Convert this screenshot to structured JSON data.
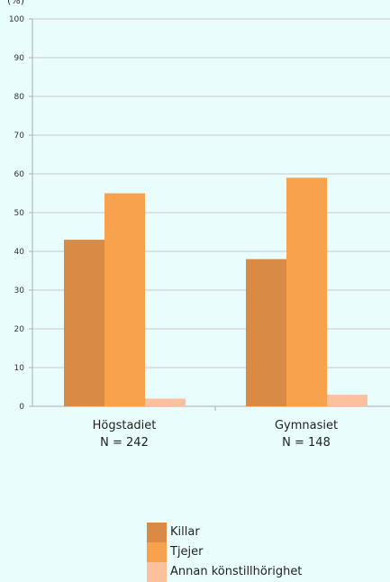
{
  "chart_data": {
    "type": "bar",
    "ylabel": "(%)",
    "ylim": [
      0,
      100
    ],
    "yticks": [
      0,
      10,
      20,
      30,
      40,
      50,
      60,
      70,
      80,
      90,
      100
    ],
    "categories": [
      {
        "label": "Högstadiet",
        "sublabel": "N = 242"
      },
      {
        "label": "Gymnasiet",
        "sublabel": "N = 148"
      }
    ],
    "series": [
      {
        "name": "Killar",
        "color": "#d98a45",
        "values": [
          43,
          38
        ]
      },
      {
        "name": "Tjejer",
        "color": "#f9a24d",
        "values": [
          55,
          59
        ]
      },
      {
        "name": "Annan könstillhörighet",
        "color": "#fcc19c",
        "values": [
          2,
          3
        ]
      }
    ],
    "grid": true,
    "legend_position": "bottom"
  }
}
